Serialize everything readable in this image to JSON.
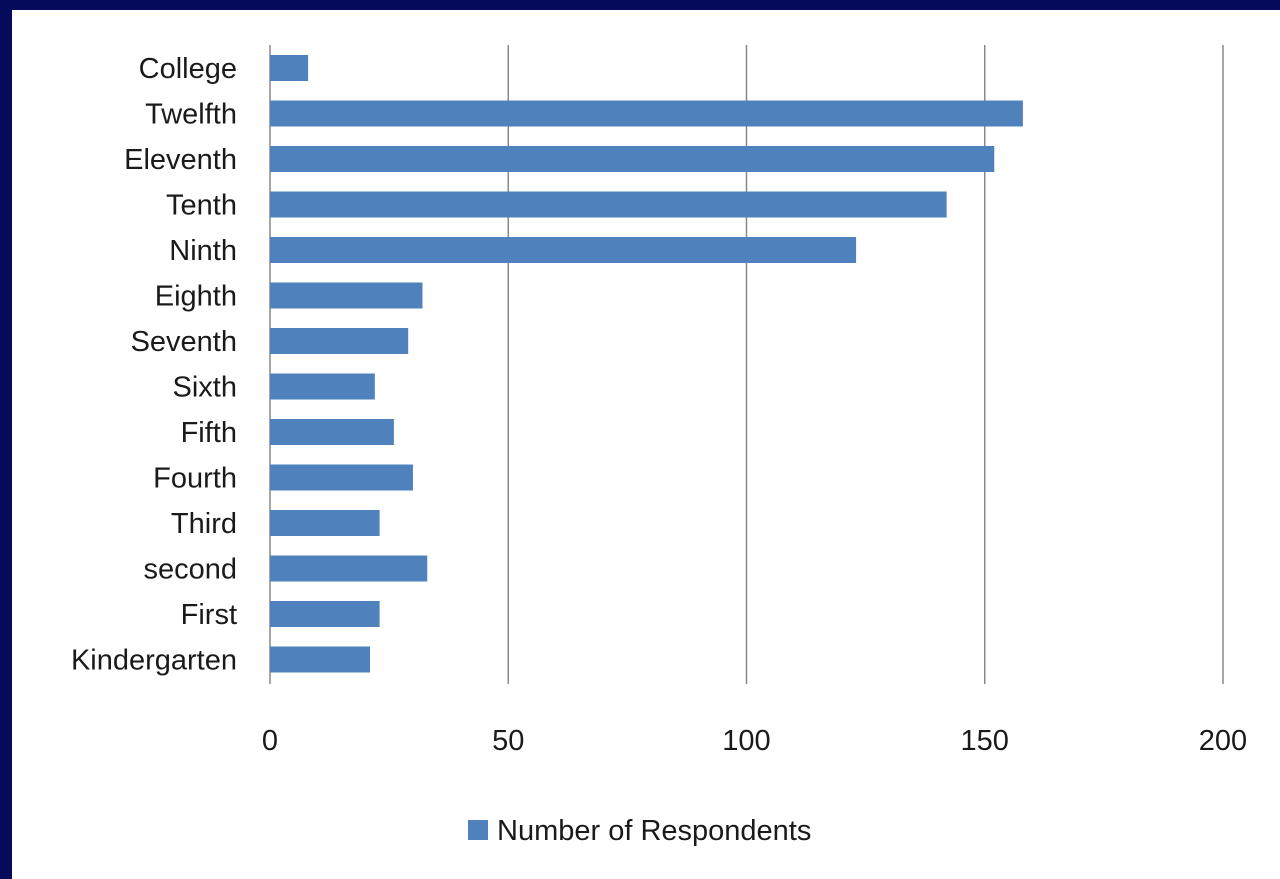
{
  "chart_data": {
    "type": "bar",
    "orientation": "horizontal",
    "categories": [
      "College",
      "Twelfth",
      "Eleventh",
      "Tenth",
      "Ninth",
      "Eighth",
      "Seventh",
      "Sixth",
      "Fifth",
      "Fourth",
      "Third",
      "second",
      "First",
      "Kindergarten"
    ],
    "series": [
      {
        "name": "Number of Respondents",
        "values": [
          8,
          158,
          152,
          142,
          123,
          32,
          29,
          22,
          26,
          30,
          23,
          33,
          23,
          21
        ]
      }
    ],
    "xlim": [
      0,
      200
    ],
    "xticks": [
      0,
      50,
      100,
      150,
      200
    ],
    "grid": true,
    "legend": "bottom",
    "colors": {
      "bar": "#4f81bd",
      "grid": "#888888",
      "frame": "#050a5a"
    }
  }
}
